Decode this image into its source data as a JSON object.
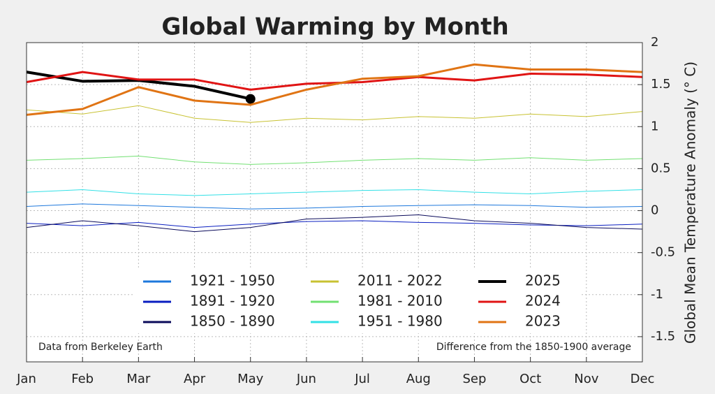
{
  "chart_data": {
    "type": "line",
    "title": "Global Warming by Month",
    "y_label": "Global Mean Temperature Anomaly (° C)",
    "annotations": [
      "Data from Berkeley Earth",
      "Difference from the 1850-1900 average"
    ],
    "categories": [
      "Jan",
      "Feb",
      "Mar",
      "Apr",
      "May",
      "Jun",
      "Jul",
      "Aug",
      "Sep",
      "Oct",
      "Nov",
      "Dec"
    ],
    "ylim": [
      -1.8,
      2
    ],
    "yticks": [
      2,
      1.5,
      1,
      0.5,
      0,
      -0.5,
      -1,
      -1.5
    ],
    "grid": true,
    "legend": "bottom",
    "series": [
      {
        "name": "1921 - 1950",
        "color": "#1e78dc",
        "linewidth": 1,
        "values": [
          0.05,
          0.08,
          0.06,
          0.04,
          0.02,
          0.03,
          0.05,
          0.06,
          0.07,
          0.06,
          0.04,
          0.05
        ]
      },
      {
        "name": "1891 - 1920",
        "color": "#0a1ec0",
        "linewidth": 1,
        "values": [
          -0.15,
          -0.18,
          -0.14,
          -0.2,
          -0.16,
          -0.13,
          -0.12,
          -0.14,
          -0.15,
          -0.17,
          -0.18,
          -0.16
        ]
      },
      {
        "name": "1850 - 1890",
        "color": "#0a0a5a",
        "linewidth": 1,
        "values": [
          -0.2,
          -0.12,
          -0.18,
          -0.25,
          -0.2,
          -0.1,
          -0.08,
          -0.05,
          -0.12,
          -0.15,
          -0.2,
          -0.22
        ]
      },
      {
        "name": "2011 - 2022",
        "color": "#c8c232",
        "linewidth": 1,
        "values": [
          1.2,
          1.15,
          1.25,
          1.1,
          1.05,
          1.1,
          1.08,
          1.12,
          1.1,
          1.15,
          1.12,
          1.18
        ]
      },
      {
        "name": "1981 - 2010",
        "color": "#72e072",
        "linewidth": 1,
        "values": [
          0.6,
          0.62,
          0.65,
          0.58,
          0.55,
          0.57,
          0.6,
          0.62,
          0.6,
          0.63,
          0.6,
          0.62
        ]
      },
      {
        "name": "1951 - 1980",
        "color": "#32e0e6",
        "linewidth": 1,
        "values": [
          0.22,
          0.25,
          0.2,
          0.18,
          0.2,
          0.22,
          0.24,
          0.25,
          0.22,
          0.2,
          0.23,
          0.25
        ]
      },
      {
        "name": "2025",
        "color": "#000000",
        "linewidth": 4,
        "marker_last": true,
        "values": [
          1.65,
          1.54,
          1.55,
          1.48,
          1.33,
          null,
          null,
          null,
          null,
          null,
          null,
          null
        ]
      },
      {
        "name": "2024",
        "color": "#e01414",
        "linewidth": 3,
        "values": [
          1.53,
          1.65,
          1.56,
          1.56,
          1.44,
          1.51,
          1.53,
          1.59,
          1.55,
          1.63,
          1.62,
          1.59
        ]
      },
      {
        "name": "2023",
        "color": "#e07414",
        "linewidth": 3,
        "values": [
          1.14,
          1.21,
          1.47,
          1.31,
          1.26,
          1.44,
          1.57,
          1.6,
          1.74,
          1.68,
          1.68,
          1.65
        ]
      }
    ]
  }
}
